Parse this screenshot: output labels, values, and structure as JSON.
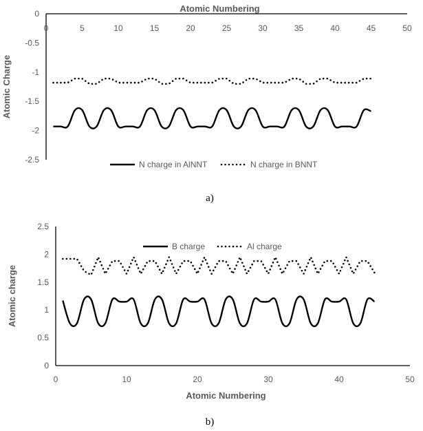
{
  "chart_data": [
    {
      "type": "line",
      "title": "",
      "xlabel": "Atomic Numbering",
      "ylabel": "Atomic Charge",
      "xlim": [
        0,
        50
      ],
      "ylim": [
        -2.5,
        0
      ],
      "xticks": [
        0,
        5,
        10,
        15,
        20,
        25,
        30,
        35,
        40,
        45,
        50
      ],
      "yticks": [
        0,
        -0.5,
        -1,
        -1.5,
        -2,
        -2.5
      ],
      "ytick_labels": [
        "0",
        "-0.5",
        "-1",
        "-1.5",
        "-2",
        "-2.5"
      ],
      "x_axis_position": "top",
      "legend_position": "bottom",
      "caption": "a)",
      "series": [
        {
          "name": "N charge in AlNNT",
          "style": "solid",
          "x_start": 1,
          "values": [
            -1.93,
            -1.93,
            -1.93,
            -1.65,
            -1.65,
            -1.93,
            -1.93,
            -1.65,
            -1.65,
            -1.93,
            -1.93,
            -1.93,
            -1.93,
            -1.65,
            -1.65,
            -1.93,
            -1.93,
            -1.65,
            -1.65,
            -1.93,
            -1.93,
            -1.93,
            -1.93,
            -1.65,
            -1.65,
            -1.93,
            -1.93,
            -1.65,
            -1.65,
            -1.93,
            -1.93,
            -1.93,
            -1.93,
            -1.65,
            -1.65,
            -1.93,
            -1.93,
            -1.65,
            -1.65,
            -1.93,
            -1.93,
            -1.93,
            -1.93,
            -1.65,
            -1.67
          ]
        },
        {
          "name": "N charge in BNNT",
          "style": "dotted",
          "x_start": 1,
          "values": [
            -1.18,
            -1.18,
            -1.18,
            -1.11,
            -1.11,
            -1.2,
            -1.2,
            -1.11,
            -1.11,
            -1.18,
            -1.18,
            -1.18,
            -1.18,
            -1.11,
            -1.11,
            -1.2,
            -1.2,
            -1.11,
            -1.11,
            -1.18,
            -1.18,
            -1.18,
            -1.18,
            -1.11,
            -1.11,
            -1.2,
            -1.2,
            -1.11,
            -1.11,
            -1.18,
            -1.18,
            -1.18,
            -1.18,
            -1.11,
            -1.11,
            -1.2,
            -1.2,
            -1.11,
            -1.11,
            -1.18,
            -1.18,
            -1.18,
            -1.18,
            -1.11,
            -1.11
          ]
        }
      ]
    },
    {
      "type": "line",
      "title": "",
      "xlabel": "Atomic Numbering",
      "ylabel": "Atomic charge",
      "xlim": [
        0,
        50
      ],
      "ylim": [
        0,
        2.5
      ],
      "xticks": [
        0,
        10,
        20,
        30,
        40,
        50
      ],
      "yticks": [
        0,
        0.5,
        1,
        1.5,
        2,
        2.5
      ],
      "ytick_labels": [
        "0",
        "0.5",
        "1",
        "1.5",
        "2",
        "2.5"
      ],
      "x_axis_position": "bottom",
      "legend_position": "top",
      "caption": "b)",
      "series": [
        {
          "name": "B charge",
          "style": "solid",
          "x_start": 1,
          "values": [
            1.17,
            0.76,
            0.76,
            1.19,
            1.19,
            0.76,
            0.76,
            1.19,
            1.15,
            1.15,
            1.19,
            0.76,
            0.76,
            1.19,
            1.19,
            0.76,
            0.76,
            1.19,
            1.15,
            1.15,
            1.19,
            0.76,
            0.76,
            1.19,
            1.19,
            0.76,
            0.76,
            1.19,
            1.15,
            1.15,
            1.19,
            0.76,
            0.76,
            1.19,
            1.19,
            0.76,
            0.76,
            1.19,
            1.15,
            1.15,
            1.19,
            0.76,
            0.76,
            1.19,
            1.15
          ]
        },
        {
          "name": "Al charge",
          "style": "dotted",
          "x_start": 1,
          "values": [
            1.92,
            1.92,
            1.92,
            1.7,
            1.63,
            1.95,
            1.65,
            1.88,
            1.88,
            1.65,
            1.95,
            1.65,
            1.88,
            1.88,
            1.65,
            1.95,
            1.65,
            1.88,
            1.88,
            1.65,
            1.95,
            1.65,
            1.88,
            1.88,
            1.65,
            1.95,
            1.65,
            1.88,
            1.88,
            1.65,
            1.95,
            1.65,
            1.88,
            1.88,
            1.65,
            1.95,
            1.65,
            1.88,
            1.88,
            1.65,
            1.95,
            1.65,
            1.88,
            1.88,
            1.67
          ]
        }
      ]
    }
  ]
}
